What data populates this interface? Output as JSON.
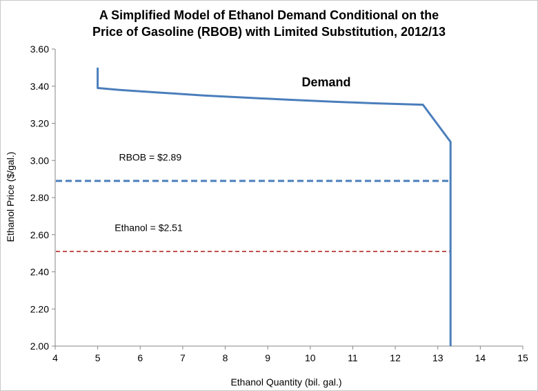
{
  "chart_data": {
    "type": "line",
    "title_lines": [
      "A Simplified Model of Ethanol Demand Conditional on the",
      "Price of Gasoline (RBOB) with Limited Substitution, 2012/13"
    ],
    "xlabel": "Ethanol Quantity (bil. gal.)",
    "ylabel": "Ethanol Price ($/gal.)",
    "xlim": [
      4,
      15
    ],
    "ylim": [
      2.0,
      3.6
    ],
    "x_ticks": [
      "4",
      "5",
      "6",
      "7",
      "8",
      "9",
      "10",
      "11",
      "12",
      "13",
      "14",
      "15"
    ],
    "y_ticks": [
      "2.00",
      "2.20",
      "2.40",
      "2.60",
      "2.80",
      "3.00",
      "3.20",
      "3.40",
      "3.60"
    ],
    "grid": false,
    "legend": "none",
    "series": [
      {
        "name": "Demand",
        "color": "#4a7ebb",
        "style": "solid",
        "points": [
          [
            5.0,
            3.5
          ],
          [
            5.0,
            3.39
          ],
          [
            5.5,
            3.38
          ],
          [
            6.5,
            3.365
          ],
          [
            7.5,
            3.35
          ],
          [
            8.5,
            3.338
          ],
          [
            9.5,
            3.327
          ],
          [
            10.5,
            3.317
          ],
          [
            11.5,
            3.308
          ],
          [
            12.65,
            3.3
          ],
          [
            13.3,
            3.1
          ],
          [
            13.3,
            2.0
          ]
        ]
      }
    ],
    "reference_lines": [
      {
        "label": "RBOB = $2.89",
        "y": 2.89,
        "x_range": [
          4,
          13.3
        ],
        "color": "#4a7ebb",
        "style": "dashed"
      },
      {
        "label": "Ethanol = $2.51",
        "y": 2.51,
        "x_range": [
          4,
          13.3
        ],
        "color": "#c0504d",
        "style": "dashed"
      }
    ],
    "annotations": [
      {
        "text": "Demand",
        "x": 9.8,
        "y": 3.4,
        "bold": true
      },
      {
        "text": "RBOB = $2.89",
        "x": 5.5,
        "y": 3.0,
        "bold": false
      },
      {
        "text": "Ethanol = $2.51",
        "x": 5.4,
        "y": 2.62,
        "bold": false
      }
    ]
  }
}
